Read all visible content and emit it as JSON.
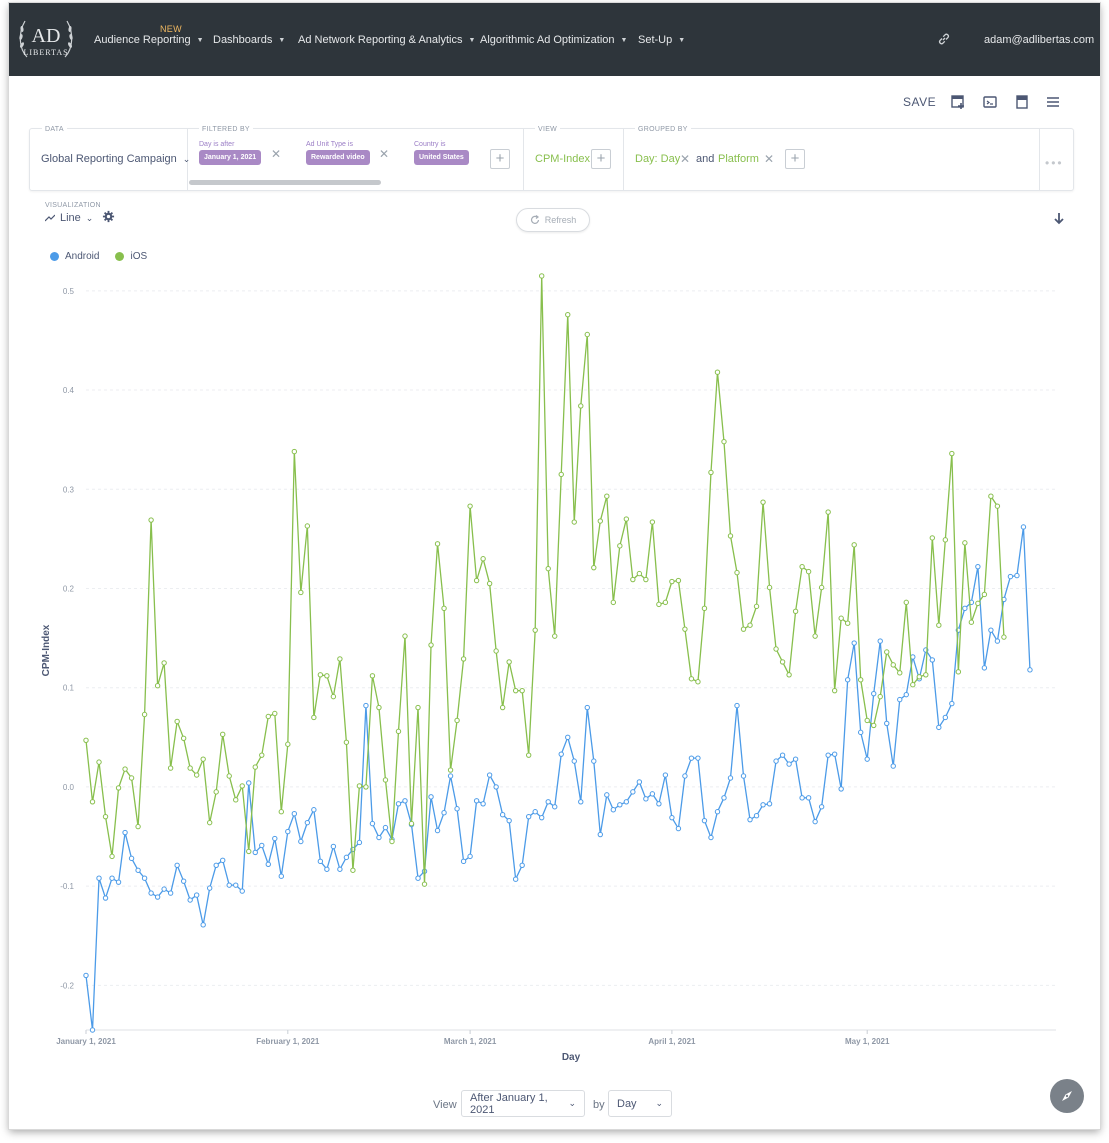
{
  "nav": {
    "logo_text_top": "AD",
    "logo_text_bottom": "LIBERTAS",
    "new_badge": "NEW",
    "items": [
      {
        "label": "Audience Reporting"
      },
      {
        "label": "Dashboards"
      },
      {
        "label": "Ad Network Reporting & Analytics"
      },
      {
        "label": "Algorithmic Ad Optimization"
      },
      {
        "label": "Set-Up"
      }
    ],
    "link_icon": "link-icon",
    "user_email": "adam@adlibertas.com"
  },
  "toolbar": {
    "save_label": "SAVE",
    "icons": [
      "add-to-dashboard-icon",
      "embed-icon",
      "bookmark-icon",
      "menu-icon"
    ]
  },
  "query": {
    "data_label": "DATA",
    "data_value": "Global Reporting Campaign",
    "filtered_label": "FILTERED BY",
    "filters": [
      {
        "title": "Day is after",
        "value": "January 1, 2021"
      },
      {
        "title": "Ad Unit Type is",
        "value": "Rewarded video"
      },
      {
        "title": "Country is",
        "value": "United States"
      }
    ],
    "view_label": "VIEW",
    "view_value": "CPM-Index",
    "grouped_label": "GROUPED BY",
    "group_1": "Day: Day",
    "group_and": "and",
    "group_2": "Platform",
    "more": "•••"
  },
  "visualization": {
    "label": "VISUALIZATION",
    "type": "Line",
    "refresh_label": "Refresh"
  },
  "colors": {
    "android": "#4c9be8",
    "ios": "#88bf4d",
    "nav_bg": "#2e353b"
  },
  "chart_data": {
    "type": "line",
    "title": "",
    "xlabel": "Day",
    "ylabel": "CPM-Index",
    "ylim": [
      -0.245,
      0.52
    ],
    "yticks": [
      "-0.2",
      "-0.1",
      "0.0",
      "0.1",
      "0.2",
      "0.3",
      "0.4",
      "0.5"
    ],
    "xticks": [
      "January 1, 2021",
      "February 1, 2021",
      "March 1, 2021",
      "April 1, 2021",
      "May 1, 2021"
    ],
    "x_start": "2021-01-01",
    "x_end": "2021-05-30",
    "legend_position": "top-left",
    "grid": true,
    "series": [
      {
        "name": "Android",
        "values": [
          -0.19,
          -0.245,
          -0.092,
          -0.112,
          -0.092,
          -0.096,
          -0.046,
          -0.072,
          -0.084,
          -0.092,
          -0.107,
          -0.111,
          -0.103,
          -0.107,
          -0.079,
          -0.095,
          -0.114,
          -0.109,
          -0.139,
          -0.102,
          -0.079,
          -0.074,
          -0.099,
          -0.099,
          -0.105,
          0.004,
          -0.066,
          -0.059,
          -0.078,
          -0.052,
          -0.09,
          -0.045,
          -0.027,
          -0.055,
          -0.036,
          -0.023,
          -0.075,
          -0.083,
          -0.06,
          -0.083,
          -0.071,
          -0.063,
          -0.056,
          0.082,
          -0.037,
          -0.051,
          -0.041,
          -0.053,
          -0.017,
          -0.014,
          -0.038,
          -0.092,
          -0.085,
          -0.01,
          -0.044,
          -0.026,
          0.011,
          -0.022,
          -0.075,
          -0.07,
          -0.014,
          -0.017,
          0.012,
          0.0,
          -0.028,
          -0.034,
          -0.093,
          -0.079,
          -0.03,
          -0.025,
          -0.031,
          -0.015,
          -0.02,
          0.033,
          0.05,
          0.026,
          -0.015,
          0.08,
          0.026,
          -0.048,
          -0.008,
          -0.023,
          -0.018,
          -0.015,
          -0.005,
          0.005,
          -0.012,
          -0.007,
          -0.017,
          0.012,
          -0.031,
          -0.042,
          0.011,
          0.029,
          0.029,
          -0.034,
          -0.051,
          -0.025,
          -0.011,
          0.009,
          0.082,
          0.011,
          -0.033,
          -0.029,
          -0.018,
          -0.017,
          0.026,
          0.032,
          0.023,
          0.028,
          -0.011,
          -0.011,
          -0.035,
          -0.02,
          0.032,
          0.033,
          -0.002,
          0.108,
          0.145,
          0.055,
          0.028,
          0.094,
          0.147,
          0.064,
          0.021,
          0.088,
          0.093,
          0.131,
          0.109,
          0.138,
          0.128,
          0.06,
          0.07,
          0.084,
          0.158,
          0.18,
          0.186,
          0.222,
          0.12,
          0.158,
          0.147,
          0.189,
          0.212,
          0.213,
          0.262,
          0.118
        ]
      },
      {
        "name": "iOS",
        "values": [
          0.047,
          -0.015,
          0.025,
          -0.03,
          -0.07,
          -0.001,
          0.018,
          0.009,
          -0.04,
          0.073,
          0.269,
          0.102,
          0.125,
          0.019,
          0.066,
          0.049,
          0.019,
          0.012,
          0.028,
          -0.036,
          -0.005,
          0.053,
          0.011,
          -0.013,
          0.001,
          -0.065,
          0.02,
          0.032,
          0.071,
          0.074,
          -0.025,
          0.043,
          0.338,
          0.196,
          0.263,
          0.07,
          0.113,
          0.112,
          0.091,
          0.129,
          0.045,
          -0.084,
          0.001,
          0.0,
          0.112,
          0.08,
          0.007,
          -0.055,
          0.056,
          0.152,
          -0.037,
          0.08,
          -0.098,
          0.143,
          0.245,
          0.18,
          0.017,
          0.067,
          0.129,
          0.283,
          0.208,
          0.23,
          0.205,
          0.137,
          0.08,
          0.126,
          0.097,
          0.097,
          0.032,
          0.158,
          0.515,
          0.22,
          0.152,
          0.315,
          0.476,
          0.267,
          0.384,
          0.456,
          0.221,
          0.268,
          0.293,
          0.186,
          0.243,
          0.27,
          0.209,
          0.215,
          0.209,
          0.267,
          0.184,
          0.186,
          0.207,
          0.208,
          0.159,
          0.109,
          0.106,
          0.18,
          0.317,
          0.418,
          0.348,
          0.253,
          0.216,
          0.159,
          0.163,
          0.182,
          0.287,
          0.201,
          0.139,
          0.126,
          0.113,
          0.177,
          0.222,
          0.217,
          0.152,
          0.201,
          0.277,
          0.097,
          0.17,
          0.165,
          0.244,
          0.108,
          0.067,
          0.062,
          0.091,
          0.136,
          0.123,
          0.115,
          0.186,
          0.103,
          0.111,
          0.113,
          0.251,
          0.163,
          0.249,
          0.336,
          0.116,
          0.246,
          0.166,
          0.185,
          0.194,
          0.293,
          0.283,
          0.151
        ]
      }
    ]
  },
  "footer": {
    "view_label": "View",
    "date_select": "After January 1, 2021",
    "by_label": "by",
    "unit_select": "Day"
  }
}
